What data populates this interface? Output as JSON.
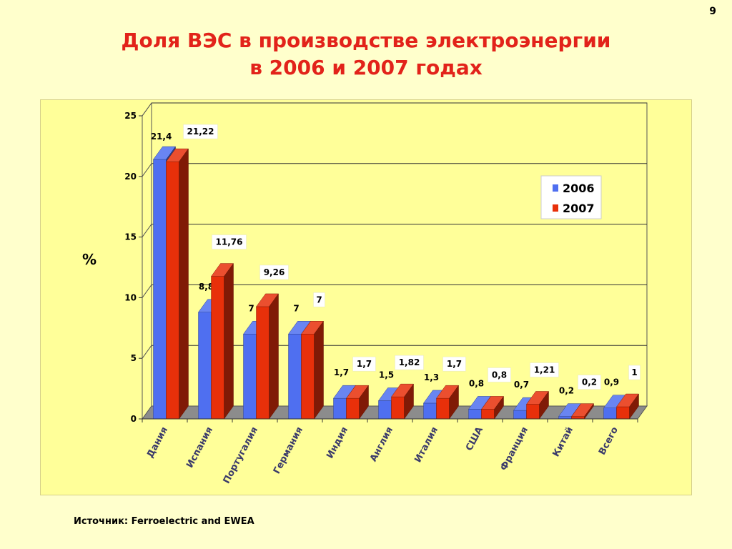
{
  "page_number": "9",
  "title_line1": "Доля ВЭС в производстве электроэнергии",
  "title_line2": "в 2006 и 2007 годах",
  "source": "Источник: Ferroelectric and EWEA",
  "colors": {
    "title": "#e2231a",
    "series_2006": "#4f6ff0",
    "series_2007": "#e8300a",
    "background": "#ffffcc",
    "plot_area": "#ffff99"
  },
  "chart_data": {
    "type": "bar",
    "style": "3d-clustered",
    "ylabel": "%",
    "ylim": [
      0,
      25
    ],
    "yticks": [
      "0",
      "5",
      "10",
      "15",
      "20",
      "25"
    ],
    "grid": true,
    "legend": "top-right",
    "categories": [
      "Дания",
      "Испания",
      "Португалия",
      "Германия",
      "Индия",
      "Англия",
      "Италия",
      "США",
      "Франция",
      "Китай",
      "Всего"
    ],
    "series": [
      {
        "name": "2006",
        "values": [
          21.4,
          8.8,
          7,
          7,
          1.7,
          1.5,
          1.3,
          0.8,
          0.7,
          0.2,
          0.9
        ],
        "labels": [
          "21,4",
          "8,8",
          "7",
          "7",
          "1,7",
          "1,5",
          "1,3",
          "0,8",
          "0,7",
          "0,2",
          "0,9"
        ]
      },
      {
        "name": "2007",
        "values": [
          21.22,
          11.76,
          9.26,
          7,
          1.7,
          1.82,
          1.7,
          0.8,
          1.21,
          0.2,
          1
        ],
        "labels": [
          "21,22",
          "11,76",
          "9,26",
          "7",
          "1,7",
          "1,82",
          "1,7",
          "0,8",
          "1,21",
          "0,2",
          "1"
        ]
      }
    ]
  }
}
